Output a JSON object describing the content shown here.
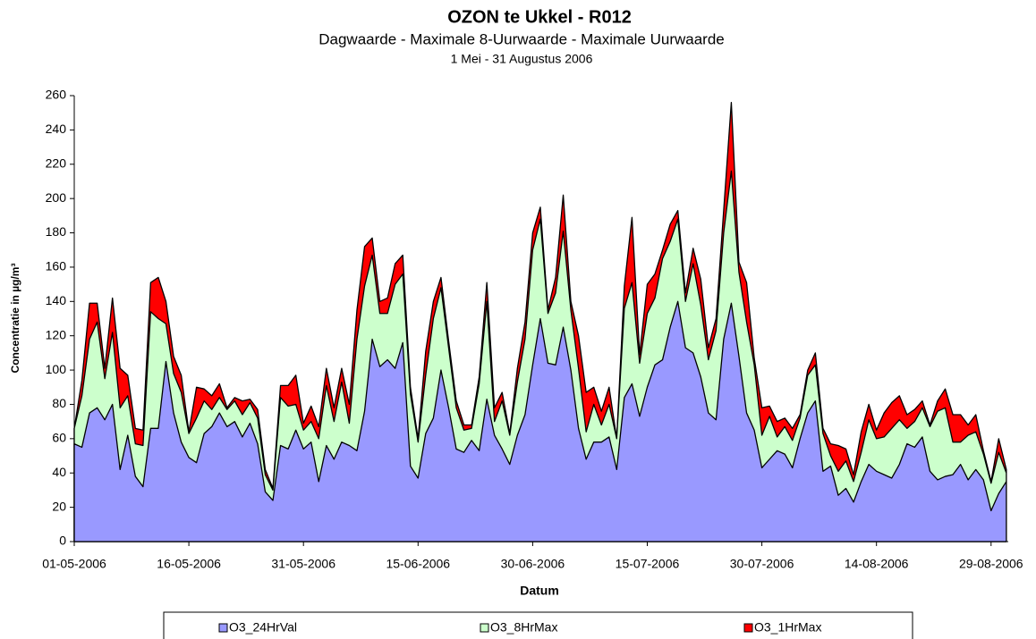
{
  "chart_data": {
    "type": "area",
    "title": "OZON te Ukkel - R012",
    "subtitle": "Dagwaarde  -  Maximale 8-Uurwaarde  -  Maximale Uurwaarde",
    "period": "1 Mei - 31 Augustus 2006",
    "xlabel": "Datum",
    "ylabel": "Concentratie in µg/m³",
    "ylim": [
      0,
      260
    ],
    "yticks": [
      0,
      20,
      40,
      60,
      80,
      100,
      120,
      140,
      160,
      180,
      200,
      220,
      240,
      260
    ],
    "grid": false,
    "legend": "bottom",
    "categories": [
      "01-05-2006",
      null,
      null,
      null,
      null,
      null,
      null,
      null,
      null,
      null,
      null,
      null,
      null,
      null,
      null,
      "16-05-2006",
      null,
      null,
      null,
      null,
      null,
      null,
      null,
      null,
      null,
      null,
      null,
      null,
      null,
      null,
      "31-05-2006",
      null,
      null,
      null,
      null,
      null,
      null,
      null,
      null,
      null,
      null,
      null,
      null,
      null,
      null,
      "15-06-2006",
      null,
      null,
      null,
      null,
      null,
      null,
      null,
      null,
      null,
      null,
      null,
      null,
      null,
      null,
      "30-06-2006",
      null,
      null,
      null,
      null,
      null,
      null,
      null,
      null,
      null,
      null,
      null,
      null,
      null,
      null,
      "15-07-2006",
      null,
      null,
      null,
      null,
      null,
      null,
      null,
      null,
      null,
      null,
      null,
      null,
      null,
      null,
      "30-07-2006",
      null,
      null,
      null,
      null,
      null,
      null,
      null,
      null,
      null,
      null,
      null,
      null,
      null,
      null,
      "14-08-2006",
      null,
      null,
      null,
      null,
      null,
      null,
      null,
      null,
      null,
      null,
      null,
      null,
      null,
      null,
      "29-08-2006",
      null,
      null
    ],
    "series": [
      {
        "name": "O3_24HrVal",
        "color": "#9999ff",
        "values": [
          57,
          55,
          75,
          78,
          71,
          80,
          42,
          62,
          38,
          32,
          66,
          66,
          105,
          75,
          58,
          49,
          46,
          63,
          67,
          75,
          67,
          70,
          61,
          69,
          57,
          29,
          24,
          56,
          54,
          65,
          54,
          58,
          35,
          56,
          48,
          58,
          56,
          53,
          76,
          118,
          102,
          106,
          101,
          116,
          44,
          37,
          63,
          72,
          100,
          78,
          54,
          52,
          59,
          53,
          83,
          62,
          54,
          45,
          62,
          74,
          103,
          130,
          104,
          103,
          125,
          100,
          66,
          48,
          58,
          58,
          61,
          42,
          84,
          92,
          73,
          90,
          103,
          106,
          125,
          140,
          113,
          110,
          96,
          75,
          71,
          118,
          139,
          108,
          75,
          65,
          43,
          48,
          53,
          51,
          43,
          60,
          75,
          82,
          41,
          44,
          27,
          31,
          23,
          35,
          45,
          41,
          39,
          37,
          45,
          57,
          55,
          61,
          41,
          36,
          38,
          39,
          45,
          36,
          42,
          36,
          18,
          28,
          35
        ]
      },
      {
        "name": "O3_8HrMax",
        "color": "#ccffcc",
        "values": [
          66,
          85,
          118,
          128,
          95,
          122,
          78,
          85,
          57,
          56,
          134,
          130,
          127,
          98,
          87,
          63,
          72,
          82,
          77,
          84,
          77,
          82,
          74,
          81,
          72,
          39,
          30,
          84,
          79,
          80,
          65,
          70,
          60,
          91,
          70,
          93,
          69,
          118,
          149,
          167,
          133,
          133,
          150,
          156,
          86,
          58,
          97,
          130,
          148,
          113,
          78,
          65,
          66,
          92,
          140,
          70,
          82,
          62,
          93,
          118,
          170,
          188,
          133,
          145,
          181,
          135,
          101,
          64,
          80,
          68,
          80,
          60,
          136,
          151,
          104,
          133,
          142,
          165,
          175,
          188,
          140,
          162,
          138,
          106,
          123,
          180,
          216,
          157,
          128,
          103,
          62,
          73,
          61,
          67,
          59,
          72,
          97,
          103,
          63,
          50,
          41,
          47,
          35,
          52,
          71,
          60,
          61,
          66,
          71,
          66,
          70,
          78,
          67,
          76,
          78,
          58,
          58,
          62,
          64,
          51,
          34,
          52,
          40
        ]
      },
      {
        "name": "O3_1HrMax",
        "color": "#ff0000",
        "values": [
          66,
          94,
          139,
          139,
          101,
          142,
          101,
          97,
          66,
          65,
          151,
          154,
          140,
          108,
          97,
          64,
          90,
          89,
          85,
          92,
          78,
          84,
          82,
          83,
          77,
          42,
          31,
          91,
          91,
          97,
          69,
          79,
          67,
          101,
          78,
          101,
          80,
          135,
          172,
          177,
          140,
          142,
          162,
          167,
          90,
          60,
          111,
          140,
          154,
          117,
          82,
          68,
          68,
          96,
          151,
          78,
          87,
          63,
          101,
          128,
          180,
          195,
          135,
          154,
          202,
          140,
          120,
          87,
          90,
          76,
          90,
          60,
          149,
          189,
          109,
          150,
          156,
          170,
          185,
          193,
          145,
          171,
          153,
          113,
          130,
          193,
          256,
          163,
          151,
          107,
          78,
          79,
          70,
          72,
          66,
          74,
          100,
          110,
          66,
          57,
          56,
          54,
          39,
          64,
          80,
          65,
          75,
          81,
          85,
          74,
          77,
          82,
          68,
          82,
          89,
          74,
          74,
          68,
          74,
          53,
          35,
          60,
          42
        ]
      }
    ]
  }
}
